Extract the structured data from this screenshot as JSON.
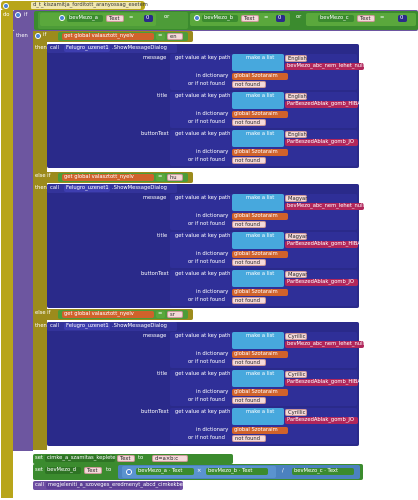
{
  "event": {
    "when": "when",
    "name": "d_t_kiszamitja_forditott_aranyossag_esetem"
  },
  "kw": {
    "do": "do",
    "if": "if",
    "then": "then",
    "else": "else",
    "elseif": "else if",
    "call": "call",
    "set": "set",
    "to": "to",
    "get": "get",
    "or": "or",
    "eq": "=",
    "neq": "≠"
  },
  "cond1": {
    "a": "bevMezo_a",
    "b": "bevMezo_b",
    "c": "bevMezo_c",
    "prop": "Text",
    "val": "0",
    "dropdown": "▾"
  },
  "lang_var": "global valasztott_nyelv",
  "lang_values": [
    "en",
    "hu",
    "sr"
  ],
  "dialog": {
    "component": "Felugro_uzenet1",
    "method": ".ShowMessageDialog",
    "slots": {
      "message": "message",
      "title": "title",
      "buttonText": "buttonText"
    }
  },
  "dict_labels": {
    "get_value": "get value at key path",
    "make_list": "make a list",
    "in_dict": "in dictionary",
    "not_found_lbl": "or if not found",
    "dict": "global Szotaraim",
    "not_found": "not found"
  },
  "branches": [
    {
      "lang": "English",
      "keys": [
        "bevMezo_abc_nem_lehet_nulla",
        "ParBeszedAblak_gomb_HIBA",
        "ParBeszedAblak_gomb_JO"
      ]
    },
    {
      "lang": "Magyar",
      "keys": [
        "bevMezo_abc_nem_lehet_nulla",
        "ParBeszedAblak_gomb_HIBA",
        "ParBeszedAblak_gomb_JO"
      ]
    },
    {
      "lang": "Cyrillic",
      "keys": [
        "bevMezo_abc_nem_lehet_nulla",
        "ParBeszedAblak_gomb_HIBA",
        "ParBeszedAblak_gomb_JO"
      ]
    }
  ],
  "else_branch": {
    "set1_target": "cimke_a_szamitas_keplete",
    "set1_prop": "Text",
    "set1_val": "d=a×b:c",
    "set2_target": "bevMezo_d",
    "set2_prop": "Text",
    "mul": "×",
    "div": "/",
    "operands": [
      "bevMezo_a",
      "bevMezo_b",
      "bevMezo_c"
    ],
    "call_proc": "megjeleniti_a_szoveges_eredmenyt_abcd_cimkekben"
  }
}
